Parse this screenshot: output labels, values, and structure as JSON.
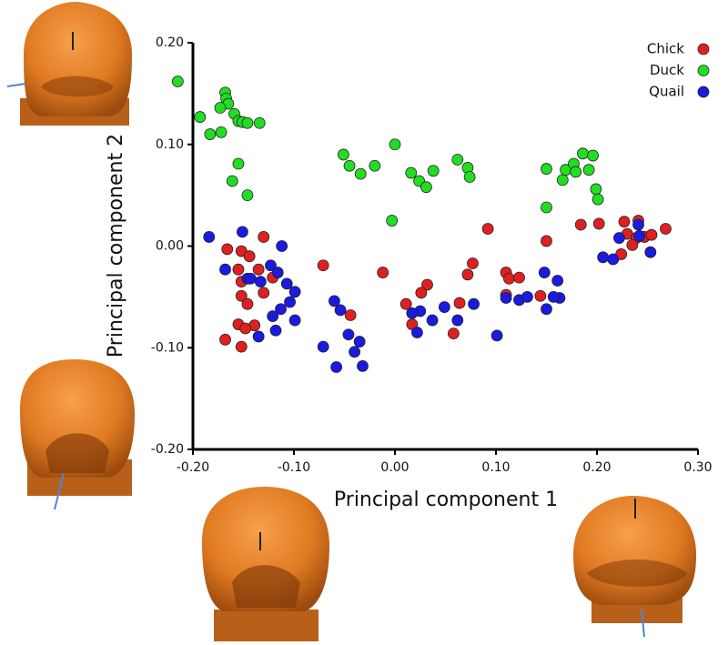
{
  "chart_data": {
    "type": "scatter",
    "x_label": "Principal component 1",
    "y_label": "Principal component 2",
    "xlim": [
      -0.2,
      0.3
    ],
    "ylim": [
      -0.2,
      0.2
    ],
    "xticks": [
      {
        "value": -0.2,
        "label": "-0.20"
      },
      {
        "value": -0.1,
        "label": "-0.10"
      },
      {
        "value": 0,
        "label": "0.00"
      },
      {
        "value": 0.1,
        "label": "0.10"
      },
      {
        "value": 0.2,
        "label": "0.20"
      },
      {
        "value": 0.3,
        "label": "0.30"
      }
    ],
    "yticks": [
      {
        "value": -0.2,
        "label": "-0.20"
      },
      {
        "value": -0.1,
        "label": "-0.10"
      },
      {
        "value": 0,
        "label": "0.00"
      },
      {
        "value": 0.1,
        "label": "0.10"
      },
      {
        "value": 0.2,
        "label": "0.20"
      }
    ],
    "legend": "upper right",
    "series": [
      {
        "name": "Chick",
        "color": "#e02020",
        "x": [
          -0.166,
          -0.152,
          -0.144,
          -0.13,
          -0.155,
          -0.135,
          -0.152,
          -0.121,
          -0.152,
          -0.13,
          -0.146,
          -0.139,
          -0.155,
          -0.148,
          -0.168,
          -0.152,
          -0.071,
          -0.044,
          -0.012,
          0.011,
          0.032,
          0.026,
          0.017,
          0.058,
          0.064,
          0.072,
          0.077,
          0.092,
          0.11,
          0.113,
          0.123,
          0.11,
          0.144,
          0.15,
          0.184,
          0.202,
          0.227,
          0.241,
          0.23,
          0.239,
          0.247,
          0.254,
          0.268,
          0.235,
          0.224
        ],
        "y": [
          -0.003,
          -0.005,
          -0.01,
          0.009,
          -0.023,
          -0.023,
          -0.035,
          -0.031,
          -0.049,
          -0.046,
          -0.057,
          -0.078,
          -0.077,
          -0.081,
          -0.092,
          -0.099,
          -0.019,
          -0.068,
          -0.026,
          -0.057,
          -0.038,
          -0.046,
          -0.077,
          -0.086,
          -0.056,
          -0.028,
          -0.017,
          0.017,
          -0.026,
          -0.032,
          -0.031,
          -0.048,
          -0.049,
          0.005,
          0.021,
          0.022,
          0.024,
          0.025,
          0.012,
          0.008,
          0.009,
          0.011,
          0.017,
          0.001,
          -0.008
        ]
      },
      {
        "name": "Duck",
        "color": "#22dd22",
        "x": [
          -0.215,
          -0.193,
          -0.168,
          -0.167,
          -0.165,
          -0.173,
          -0.159,
          -0.155,
          -0.151,
          -0.146,
          -0.134,
          -0.183,
          -0.172,
          -0.161,
          -0.155,
          -0.146,
          -0.051,
          -0.045,
          -0.034,
          -0.02,
          0.0,
          -0.003,
          0.016,
          0.024,
          0.031,
          0.038,
          0.062,
          0.072,
          0.074,
          0.15,
          0.15,
          0.166,
          0.169,
          0.177,
          0.186,
          0.192,
          0.196,
          0.199,
          0.201,
          0.179
        ],
        "y": [
          0.162,
          0.127,
          0.151,
          0.145,
          0.14,
          0.136,
          0.13,
          0.123,
          0.122,
          0.121,
          0.121,
          0.11,
          0.112,
          0.064,
          0.081,
          0.05,
          0.09,
          0.079,
          0.071,
          0.079,
          0.1,
          0.025,
          0.072,
          0.064,
          0.058,
          0.074,
          0.085,
          0.077,
          0.068,
          0.076,
          0.038,
          0.065,
          0.075,
          0.081,
          0.091,
          0.075,
          0.089,
          0.056,
          0.046,
          0.073
        ]
      },
      {
        "name": "Quail",
        "color": "#1a1ae0",
        "x": [
          -0.184,
          -0.151,
          -0.168,
          -0.146,
          -0.143,
          -0.133,
          -0.123,
          -0.112,
          -0.116,
          -0.107,
          -0.099,
          -0.104,
          -0.113,
          -0.121,
          -0.118,
          -0.099,
          -0.135,
          -0.071,
          -0.06,
          -0.054,
          -0.058,
          -0.046,
          -0.04,
          -0.035,
          -0.032,
          0.025,
          0.017,
          0.049,
          0.037,
          0.022,
          0.062,
          0.078,
          0.101,
          0.11,
          0.123,
          0.131,
          0.148,
          0.15,
          0.161,
          0.163,
          0.157,
          0.206,
          0.216,
          0.222,
          0.241,
          0.242,
          0.253
        ],
        "y": [
          0.009,
          0.014,
          -0.023,
          -0.032,
          -0.032,
          -0.035,
          -0.019,
          0.0,
          -0.026,
          -0.037,
          -0.045,
          -0.055,
          -0.062,
          -0.069,
          -0.083,
          -0.073,
          -0.089,
          -0.099,
          -0.054,
          -0.063,
          -0.119,
          -0.087,
          -0.104,
          -0.094,
          -0.118,
          -0.064,
          -0.066,
          -0.06,
          -0.073,
          -0.085,
          -0.073,
          -0.057,
          -0.088,
          -0.051,
          -0.053,
          -0.05,
          -0.026,
          -0.062,
          -0.034,
          -0.051,
          -0.05,
          -0.011,
          -0.013,
          0.008,
          0.021,
          0.01,
          -0.006
        ]
      }
    ]
  }
}
